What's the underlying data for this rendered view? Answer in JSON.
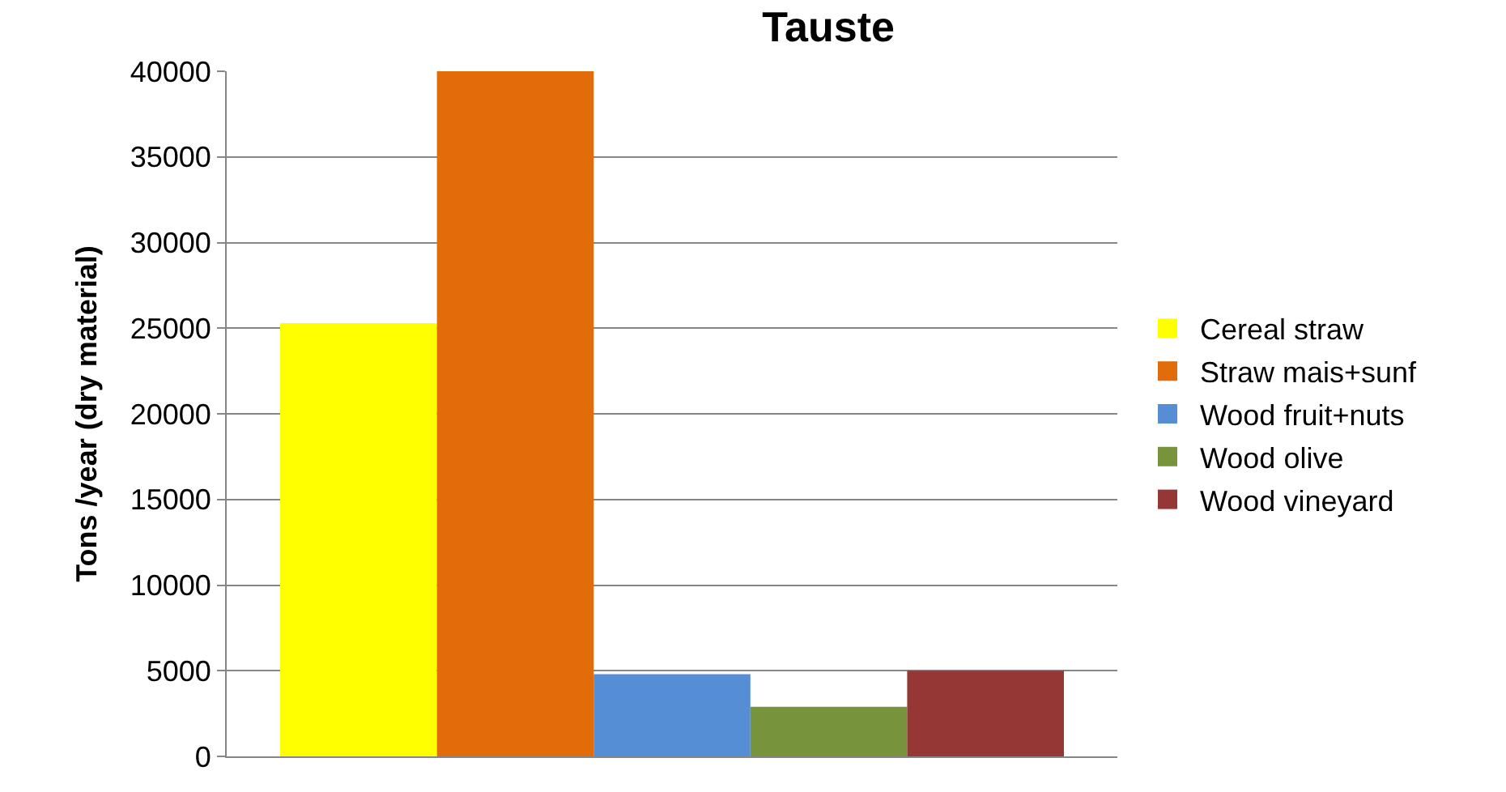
{
  "chart_data": {
    "type": "bar",
    "title": "Tauste",
    "ylabel": "Tons /year (dry material)",
    "categories": [
      null
    ],
    "series": [
      {
        "name": "Cereal straw",
        "color": "#ffff00",
        "values": [
          25300
        ]
      },
      {
        "name": "Straw mais+sunf",
        "color": "#e36c0a",
        "values": [
          40000
        ]
      },
      {
        "name": "Wood fruit+nuts",
        "color": "#558ed5",
        "values": [
          4800
        ]
      },
      {
        "name": "Wood olive",
        "color": "#77933c",
        "values": [
          2900
        ]
      },
      {
        "name": "Wood vineyard",
        "color": "#953735",
        "values": [
          5000
        ]
      }
    ],
    "ylim": [
      0,
      40000
    ],
    "yticks": [
      0,
      5000,
      10000,
      15000,
      20000,
      25000,
      30000,
      35000,
      40000
    ],
    "grid": "y",
    "legend": "right"
  }
}
